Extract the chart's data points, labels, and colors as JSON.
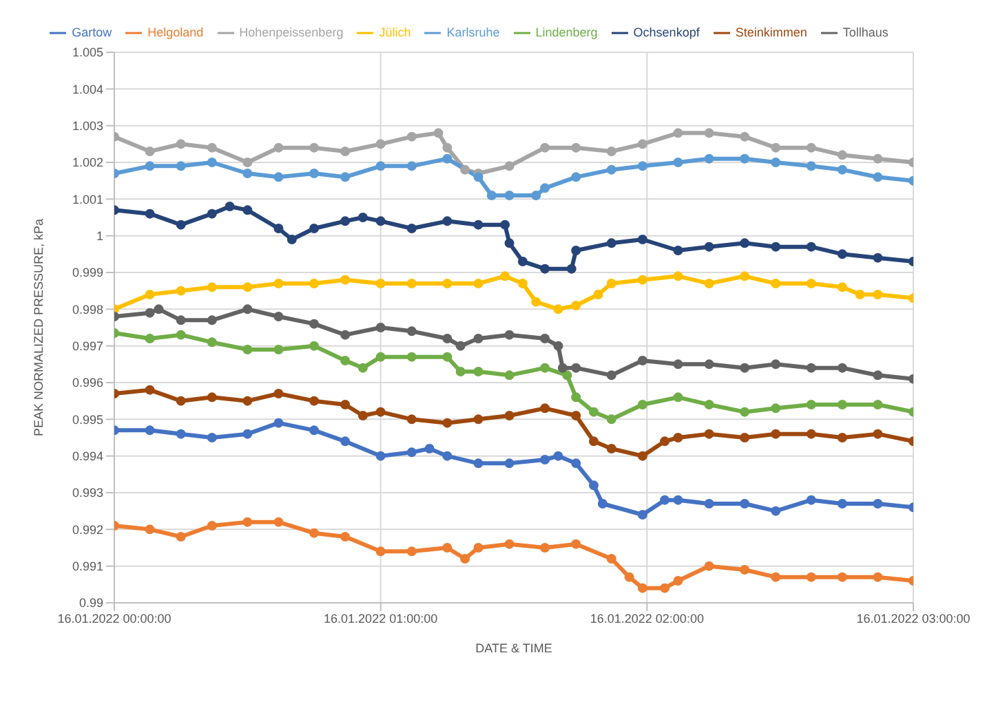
{
  "chart_data": {
    "type": "line",
    "xlabel": "DATE & TIME",
    "ylabel": "PEAK NORMALIZED PRESSURE, kPa",
    "xlim": [
      "2022-01-16T00:00",
      "2022-01-16T03:00"
    ],
    "xticks": [
      {
        "value": "2022-01-16T00:00",
        "label": "16.01.2022 00:00:00"
      },
      {
        "value": "2022-01-16T01:00",
        "label": "16.01.2022 01:00:00"
      },
      {
        "value": "2022-01-16T02:00",
        "label": "16.01.2022 02:00:00"
      },
      {
        "value": "2022-01-16T03:00",
        "label": "16.01.2022 03:00:00"
      }
    ],
    "ylim": [
      0.99,
      1.005
    ],
    "yticks": [
      0.99,
      0.991,
      0.992,
      0.993,
      0.994,
      0.995,
      0.996,
      0.997,
      0.998,
      0.999,
      1,
      1.001,
      1.002,
      1.003,
      1.004,
      1.005
    ],
    "grid": true,
    "legend": "top",
    "marker": "circle",
    "line_style": "solid",
    "series": [
      {
        "name": "Gartow",
        "color": "#4472c4",
        "x": [
          "2022-01-16T00:00",
          "2022-01-16T00:08",
          "2022-01-16T00:15",
          "2022-01-16T00:22",
          "2022-01-16T00:30",
          "2022-01-16T00:37",
          "2022-01-16T00:45",
          "2022-01-16T00:52",
          "2022-01-16T01:00",
          "2022-01-16T01:07",
          "2022-01-16T01:11",
          "2022-01-16T01:15",
          "2022-01-16T01:22",
          "2022-01-16T01:29",
          "2022-01-16T01:37",
          "2022-01-16T01:40",
          "2022-01-16T01:44",
          "2022-01-16T01:48",
          "2022-01-16T01:50",
          "2022-01-16T01:59",
          "2022-01-16T02:04",
          "2022-01-16T02:07",
          "2022-01-16T02:14",
          "2022-01-16T02:22",
          "2022-01-16T02:29",
          "2022-01-16T02:37",
          "2022-01-16T02:44",
          "2022-01-16T02:52",
          "2022-01-16T03:00"
        ],
        "values": [
          0.9947,
          0.9947,
          0.9946,
          0.9945,
          0.9946,
          0.9949,
          0.9947,
          0.9944,
          0.994,
          0.9941,
          0.9942,
          0.994,
          0.9938,
          0.9938,
          0.9939,
          0.994,
          0.9938,
          0.9932,
          0.9927,
          0.9924,
          0.9928,
          0.9928,
          0.9927,
          0.9927,
          0.9925,
          0.9928,
          0.9927,
          0.9927,
          0.9926
        ]
      },
      {
        "name": "Helgoland",
        "color": "#ed7d31",
        "x": [
          "2022-01-16T00:00",
          "2022-01-16T00:08",
          "2022-01-16T00:15",
          "2022-01-16T00:22",
          "2022-01-16T00:30",
          "2022-01-16T00:37",
          "2022-01-16T00:45",
          "2022-01-16T00:52",
          "2022-01-16T01:00",
          "2022-01-16T01:07",
          "2022-01-16T01:15",
          "2022-01-16T01:19",
          "2022-01-16T01:22",
          "2022-01-16T01:29",
          "2022-01-16T01:37",
          "2022-01-16T01:44",
          "2022-01-16T01:52",
          "2022-01-16T01:56",
          "2022-01-16T01:59",
          "2022-01-16T02:04",
          "2022-01-16T02:07",
          "2022-01-16T02:14",
          "2022-01-16T02:22",
          "2022-01-16T02:29",
          "2022-01-16T02:37",
          "2022-01-16T02:44",
          "2022-01-16T02:52",
          "2022-01-16T03:00"
        ],
        "values": [
          0.9921,
          0.992,
          0.9918,
          0.9921,
          0.9922,
          0.9922,
          0.9919,
          0.9918,
          0.9914,
          0.9914,
          0.9915,
          0.9912,
          0.9915,
          0.9916,
          0.9915,
          0.9916,
          0.9912,
          0.9907,
          0.9904,
          0.9904,
          0.9906,
          0.991,
          0.9909,
          0.9907,
          0.9907,
          0.9907,
          0.9907,
          0.9906
        ]
      },
      {
        "name": "Hohenpeissenberg",
        "color": "#a5a5a5",
        "x": [
          "2022-01-16T00:00",
          "2022-01-16T00:08",
          "2022-01-16T00:15",
          "2022-01-16T00:22",
          "2022-01-16T00:30",
          "2022-01-16T00:37",
          "2022-01-16T00:45",
          "2022-01-16T00:52",
          "2022-01-16T01:00",
          "2022-01-16T01:07",
          "2022-01-16T01:13",
          "2022-01-16T01:15",
          "2022-01-16T01:19",
          "2022-01-16T01:22",
          "2022-01-16T01:29",
          "2022-01-16T01:37",
          "2022-01-16T01:44",
          "2022-01-16T01:52",
          "2022-01-16T01:59",
          "2022-01-16T02:07",
          "2022-01-16T02:14",
          "2022-01-16T02:22",
          "2022-01-16T02:29",
          "2022-01-16T02:37",
          "2022-01-16T02:44",
          "2022-01-16T02:52",
          "2022-01-16T03:00"
        ],
        "values": [
          1.0027,
          1.0023,
          1.0025,
          1.0024,
          1.002,
          1.0024,
          1.0024,
          1.0023,
          1.0025,
          1.0027,
          1.0028,
          1.0024,
          1.0018,
          1.0017,
          1.0019,
          1.0024,
          1.0024,
          1.0023,
          1.0025,
          1.0028,
          1.0028,
          1.0027,
          1.0024,
          1.0024,
          1.0022,
          1.0021,
          1.002
        ]
      },
      {
        "name": "Jülich",
        "color": "#ffc000",
        "x": [
          "2022-01-16T00:00",
          "2022-01-16T00:08",
          "2022-01-16T00:15",
          "2022-01-16T00:22",
          "2022-01-16T00:30",
          "2022-01-16T00:37",
          "2022-01-16T00:45",
          "2022-01-16T00:52",
          "2022-01-16T01:00",
          "2022-01-16T01:07",
          "2022-01-16T01:15",
          "2022-01-16T01:22",
          "2022-01-16T01:28",
          "2022-01-16T01:32",
          "2022-01-16T01:35",
          "2022-01-16T01:40",
          "2022-01-16T01:44",
          "2022-01-16T01:49",
          "2022-01-16T01:52",
          "2022-01-16T01:59",
          "2022-01-16T02:07",
          "2022-01-16T02:14",
          "2022-01-16T02:22",
          "2022-01-16T02:29",
          "2022-01-16T02:37",
          "2022-01-16T02:44",
          "2022-01-16T02:48",
          "2022-01-16T02:52",
          "2022-01-16T03:00"
        ],
        "values": [
          0.998,
          0.9984,
          0.9985,
          0.9986,
          0.9986,
          0.9987,
          0.9987,
          0.9988,
          0.9987,
          0.9987,
          0.9987,
          0.9987,
          0.9989,
          0.9987,
          0.9982,
          0.998,
          0.9981,
          0.9984,
          0.9987,
          0.9988,
          0.9989,
          0.9987,
          0.9989,
          0.9987,
          0.9987,
          0.9986,
          0.9984,
          0.9984,
          0.9983
        ]
      },
      {
        "name": "Karlsruhe",
        "color": "#5b9bd5",
        "x": [
          "2022-01-16T00:00",
          "2022-01-16T00:08",
          "2022-01-16T00:15",
          "2022-01-16T00:22",
          "2022-01-16T00:30",
          "2022-01-16T00:37",
          "2022-01-16T00:45",
          "2022-01-16T00:52",
          "2022-01-16T01:00",
          "2022-01-16T01:07",
          "2022-01-16T01:15",
          "2022-01-16T01:22",
          "2022-01-16T01:25",
          "2022-01-16T01:29",
          "2022-01-16T01:35",
          "2022-01-16T01:37",
          "2022-01-16T01:44",
          "2022-01-16T01:52",
          "2022-01-16T01:59",
          "2022-01-16T02:07",
          "2022-01-16T02:14",
          "2022-01-16T02:22",
          "2022-01-16T02:29",
          "2022-01-16T02:37",
          "2022-01-16T02:44",
          "2022-01-16T02:52",
          "2022-01-16T03:00"
        ],
        "values": [
          1.0017,
          1.0019,
          1.0019,
          1.002,
          1.0017,
          1.0016,
          1.0017,
          1.0016,
          1.0019,
          1.0019,
          1.0021,
          1.0016,
          1.0011,
          1.0011,
          1.0011,
          1.0013,
          1.0016,
          1.0018,
          1.0019,
          1.002,
          1.0021,
          1.0021,
          1.002,
          1.0019,
          1.0018,
          1.0016,
          1.0015
        ]
      },
      {
        "name": "Lindenberg",
        "color": "#70ad47",
        "x": [
          "2022-01-16T00:00",
          "2022-01-16T00:08",
          "2022-01-16T00:15",
          "2022-01-16T00:22",
          "2022-01-16T00:30",
          "2022-01-16T00:37",
          "2022-01-16T00:45",
          "2022-01-16T00:52",
          "2022-01-16T00:56",
          "2022-01-16T01:00",
          "2022-01-16T01:07",
          "2022-01-16T01:15",
          "2022-01-16T01:18",
          "2022-01-16T01:22",
          "2022-01-16T01:29",
          "2022-01-16T01:37",
          "2022-01-16T01:42",
          "2022-01-16T01:44",
          "2022-01-16T01:48",
          "2022-01-16T01:52",
          "2022-01-16T01:59",
          "2022-01-16T02:07",
          "2022-01-16T02:14",
          "2022-01-16T02:22",
          "2022-01-16T02:29",
          "2022-01-16T02:37",
          "2022-01-16T02:44",
          "2022-01-16T02:52",
          "2022-01-16T03:00"
        ],
        "values": [
          0.99735,
          0.9972,
          0.9973,
          0.9971,
          0.9969,
          0.9969,
          0.997,
          0.9966,
          0.9964,
          0.9967,
          0.9967,
          0.9967,
          0.9963,
          0.9963,
          0.9962,
          0.9964,
          0.9962,
          0.9956,
          0.9952,
          0.995,
          0.9954,
          0.9956,
          0.9954,
          0.9952,
          0.9953,
          0.9954,
          0.9954,
          0.9954,
          0.9952
        ]
      },
      {
        "name": "Ochsenkopf",
        "color": "#264478",
        "x": [
          "2022-01-16T00:00",
          "2022-01-16T00:08",
          "2022-01-16T00:15",
          "2022-01-16T00:22",
          "2022-01-16T00:26",
          "2022-01-16T00:30",
          "2022-01-16T00:37",
          "2022-01-16T00:40",
          "2022-01-16T00:45",
          "2022-01-16T00:52",
          "2022-01-16T00:56",
          "2022-01-16T01:00",
          "2022-01-16T01:07",
          "2022-01-16T01:15",
          "2022-01-16T01:22",
          "2022-01-16T01:28",
          "2022-01-16T01:29",
          "2022-01-16T01:32",
          "2022-01-16T01:37",
          "2022-01-16T01:43",
          "2022-01-16T01:44",
          "2022-01-16T01:52",
          "2022-01-16T01:59",
          "2022-01-16T02:07",
          "2022-01-16T02:14",
          "2022-01-16T02:22",
          "2022-01-16T02:29",
          "2022-01-16T02:37",
          "2022-01-16T02:44",
          "2022-01-16T02:52",
          "2022-01-16T03:00"
        ],
        "values": [
          1.0007,
          1.0006,
          1.0003,
          1.0006,
          1.0008,
          1.0007,
          1.0002,
          0.9999,
          1.0002,
          1.0004,
          1.0005,
          1.0004,
          1.0002,
          1.0004,
          1.0003,
          1.0003,
          0.9998,
          0.9993,
          0.9991,
          0.9991,
          0.9996,
          0.9998,
          0.9999,
          0.9996,
          0.9997,
          0.9998,
          0.9997,
          0.9997,
          0.9995,
          0.9994,
          0.9993
        ]
      },
      {
        "name": "Steinkimmen",
        "color": "#9e480e",
        "x": [
          "2022-01-16T00:00",
          "2022-01-16T00:08",
          "2022-01-16T00:15",
          "2022-01-16T00:22",
          "2022-01-16T00:30",
          "2022-01-16T00:37",
          "2022-01-16T00:45",
          "2022-01-16T00:52",
          "2022-01-16T00:56",
          "2022-01-16T01:00",
          "2022-01-16T01:07",
          "2022-01-16T01:15",
          "2022-01-16T01:22",
          "2022-01-16T01:29",
          "2022-01-16T01:37",
          "2022-01-16T01:44",
          "2022-01-16T01:48",
          "2022-01-16T01:52",
          "2022-01-16T01:59",
          "2022-01-16T02:04",
          "2022-01-16T02:07",
          "2022-01-16T02:14",
          "2022-01-16T02:22",
          "2022-01-16T02:29",
          "2022-01-16T02:37",
          "2022-01-16T02:44",
          "2022-01-16T02:52",
          "2022-01-16T03:00"
        ],
        "values": [
          0.9957,
          0.9958,
          0.9955,
          0.9956,
          0.9955,
          0.9957,
          0.9955,
          0.9954,
          0.9951,
          0.9952,
          0.995,
          0.9949,
          0.995,
          0.9951,
          0.9953,
          0.9951,
          0.9944,
          0.9942,
          0.994,
          0.9944,
          0.9945,
          0.9946,
          0.9945,
          0.9946,
          0.9946,
          0.9945,
          0.9946,
          0.9944
        ]
      },
      {
        "name": "Tollhaus",
        "color": "#636363",
        "x": [
          "2022-01-16T00:00",
          "2022-01-16T00:08",
          "2022-01-16T00:10",
          "2022-01-16T00:15",
          "2022-01-16T00:22",
          "2022-01-16T00:30",
          "2022-01-16T00:37",
          "2022-01-16T00:45",
          "2022-01-16T00:52",
          "2022-01-16T01:00",
          "2022-01-16T01:07",
          "2022-01-16T01:15",
          "2022-01-16T01:18",
          "2022-01-16T01:22",
          "2022-01-16T01:29",
          "2022-01-16T01:37",
          "2022-01-16T01:40",
          "2022-01-16T01:41",
          "2022-01-16T01:44",
          "2022-01-16T01:52",
          "2022-01-16T01:59",
          "2022-01-16T02:07",
          "2022-01-16T02:14",
          "2022-01-16T02:22",
          "2022-01-16T02:29",
          "2022-01-16T02:37",
          "2022-01-16T02:44",
          "2022-01-16T02:52",
          "2022-01-16T03:00"
        ],
        "values": [
          0.9978,
          0.9979,
          0.998,
          0.9977,
          0.9977,
          0.998,
          0.9978,
          0.9976,
          0.9973,
          0.9975,
          0.9974,
          0.9972,
          0.997,
          0.9972,
          0.9973,
          0.9972,
          0.997,
          0.9964,
          0.9964,
          0.9962,
          0.9966,
          0.9965,
          0.9965,
          0.9964,
          0.9965,
          0.9964,
          0.9964,
          0.9962,
          0.9961
        ]
      }
    ]
  }
}
